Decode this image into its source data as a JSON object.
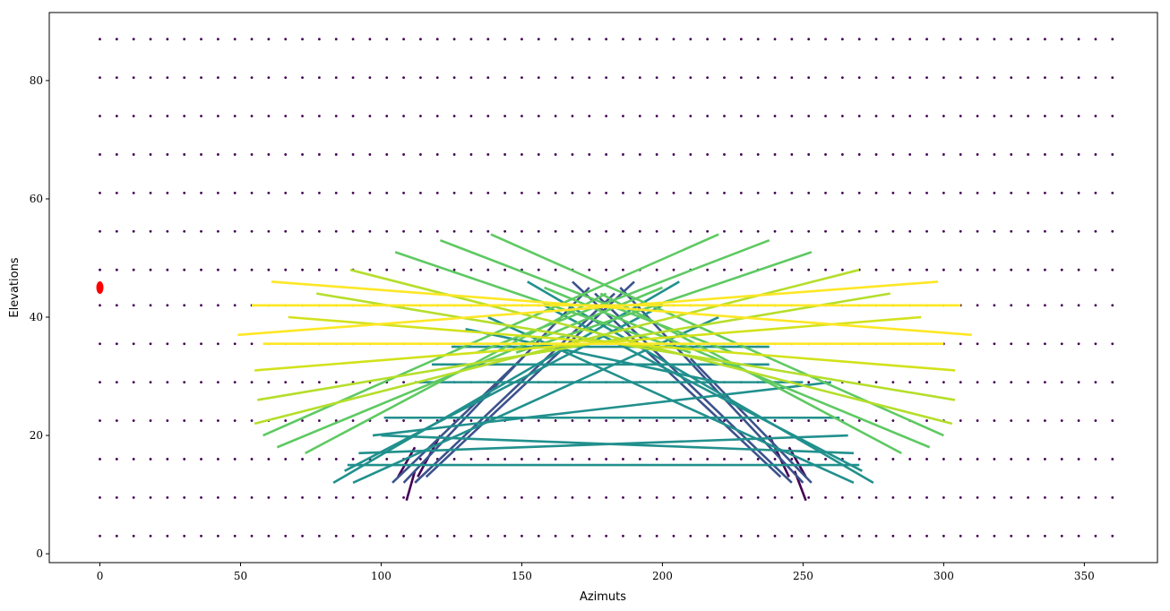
{
  "chart_data": {
    "type": "line",
    "xlabel": "Azimuts",
    "ylabel": "Elevations",
    "xlim": [
      -18,
      376
    ],
    "ylim": [
      -1.5,
      91.5
    ],
    "xticks": [
      0,
      50,
      100,
      150,
      200,
      250,
      300,
      350
    ],
    "yticks": [
      0,
      20,
      40,
      60,
      80
    ],
    "grid": false,
    "legend": "none",
    "grid_points": {
      "azimuth_start": 0,
      "azimuth_end": 360,
      "azimuth_step": 6,
      "elevations": [
        3,
        9.5,
        16,
        22.5,
        29,
        35.5,
        42,
        48,
        54.5,
        61,
        67.5,
        74,
        80.5,
        87
      ],
      "color": "#440154"
    },
    "highlight_point": {
      "x": 0,
      "y": 45,
      "color": "#ff0000"
    },
    "segments": [
      {
        "x": [
          106,
          112
        ],
        "y": [
          13,
          18
        ],
        "color": "#440154"
      },
      {
        "x": [
          109,
          112
        ],
        "y": [
          9,
          14
        ],
        "color": "#440154"
      },
      {
        "x": [
          113,
          121
        ],
        "y": [
          13,
          20
        ],
        "color": "#440154"
      },
      {
        "x": [
          245,
          251
        ],
        "y": [
          18,
          13
        ],
        "color": "#440154"
      },
      {
        "x": [
          247,
          251
        ],
        "y": [
          14,
          9
        ],
        "color": "#440154"
      },
      {
        "x": [
          238,
          245
        ],
        "y": [
          20,
          13
        ],
        "color": "#440154"
      },
      {
        "x": [
          108,
          174
        ],
        "y": [
          12,
          45
        ],
        "color": "#3b528b"
      },
      {
        "x": [
          112,
          183
        ],
        "y": [
          12,
          44
        ],
        "color": "#3b528b"
      },
      {
        "x": [
          116,
          190
        ],
        "y": [
          13,
          46
        ],
        "color": "#3b528b"
      },
      {
        "x": [
          250,
          185
        ],
        "y": [
          12,
          45
        ],
        "color": "#3b528b"
      },
      {
        "x": [
          246,
          176
        ],
        "y": [
          12,
          44
        ],
        "color": "#3b528b"
      },
      {
        "x": [
          242,
          168
        ],
        "y": [
          13,
          46
        ],
        "color": "#3b528b"
      },
      {
        "x": [
          253,
          210
        ],
        "y": [
          12,
          33
        ],
        "color": "#3b528b"
      },
      {
        "x": [
          104,
          150
        ],
        "y": [
          12,
          33
        ],
        "color": "#3b528b"
      },
      {
        "x": [
          87,
          200
        ],
        "y": [
          14,
          42
        ],
        "color": "#21908d"
      },
      {
        "x": [
          83,
          206
        ],
        "y": [
          12,
          46
        ],
        "color": "#21908d"
      },
      {
        "x": [
          90,
          220
        ],
        "y": [
          12,
          40
        ],
        "color": "#21908d"
      },
      {
        "x": [
          271,
          158
        ],
        "y": [
          14,
          42
        ],
        "color": "#21908d"
      },
      {
        "x": [
          275,
          152
        ],
        "y": [
          12,
          46
        ],
        "color": "#21908d"
      },
      {
        "x": [
          268,
          138
        ],
        "y": [
          12,
          40
        ],
        "color": "#21908d"
      },
      {
        "x": [
          97,
          260
        ],
        "y": [
          20,
          29
        ],
        "color": "#21908d"
      },
      {
        "x": [
          101,
          263
        ],
        "y": [
          23,
          23
        ],
        "color": "#21908d"
      },
      {
        "x": [
          118,
          238
        ],
        "y": [
          32,
          32
        ],
        "color": "#21908d"
      },
      {
        "x": [
          112,
          250
        ],
        "y": [
          29,
          29
        ],
        "color": "#21908d"
      },
      {
        "x": [
          125,
          238
        ],
        "y": [
          35,
          35
        ],
        "color": "#21908d"
      },
      {
        "x": [
          92,
          266
        ],
        "y": [
          17,
          20
        ],
        "color": "#21908d"
      },
      {
        "x": [
          100,
          268
        ],
        "y": [
          20,
          17
        ],
        "color": "#21908d"
      },
      {
        "x": [
          130,
          220
        ],
        "y": [
          38,
          29
        ],
        "color": "#21908d"
      },
      {
        "x": [
          88,
          270
        ],
        "y": [
          15,
          15
        ],
        "color": "#21908d"
      },
      {
        "x": [
          73,
          180
        ],
        "y": [
          17,
          44
        ],
        "color": "#5ec962"
      },
      {
        "x": [
          63,
          200
        ],
        "y": [
          18,
          45
        ],
        "color": "#5ec962"
      },
      {
        "x": [
          58,
          220
        ],
        "y": [
          20,
          54
        ],
        "color": "#5ec962"
      },
      {
        "x": [
          285,
          178
        ],
        "y": [
          17,
          44
        ],
        "color": "#5ec962"
      },
      {
        "x": [
          295,
          158
        ],
        "y": [
          18,
          45
        ],
        "color": "#5ec962"
      },
      {
        "x": [
          300,
          139
        ],
        "y": [
          20,
          54
        ],
        "color": "#5ec962"
      },
      {
        "x": [
          105,
          210
        ],
        "y": [
          51,
          34
        ],
        "color": "#5ec962"
      },
      {
        "x": [
          121,
          225
        ],
        "y": [
          53,
          34
        ],
        "color": "#5ec962"
      },
      {
        "x": [
          253,
          148
        ],
        "y": [
          51,
          34
        ],
        "color": "#5ec962"
      },
      {
        "x": [
          238,
          134
        ],
        "y": [
          53,
          34
        ],
        "color": "#5ec962"
      },
      {
        "x": [
          55,
          270
        ],
        "y": [
          22,
          48
        ],
        "color": "#b5de2b"
      },
      {
        "x": [
          303,
          89
        ],
        "y": [
          22,
          48
        ],
        "color": "#b5de2b"
      },
      {
        "x": [
          56,
          281
        ],
        "y": [
          26,
          44
        ],
        "color": "#b5de2b"
      },
      {
        "x": [
          304,
          77
        ],
        "y": [
          26,
          44
        ],
        "color": "#b5de2b"
      },
      {
        "x": [
          55,
          292
        ],
        "y": [
          31,
          40
        ],
        "color": "#d2e21b"
      },
      {
        "x": [
          304,
          67
        ],
        "y": [
          31,
          40
        ],
        "color": "#d2e21b"
      },
      {
        "x": [
          49,
          298
        ],
        "y": [
          37,
          46
        ],
        "color": "#fde725"
      },
      {
        "x": [
          310,
          61
        ],
        "y": [
          37,
          46
        ],
        "color": "#fde725"
      },
      {
        "x": [
          54,
          306
        ],
        "y": [
          42,
          42
        ],
        "color": "#fde725"
      },
      {
        "x": [
          58,
          300
        ],
        "y": [
          35.5,
          35.5
        ],
        "color": "#fde725"
      }
    ]
  }
}
